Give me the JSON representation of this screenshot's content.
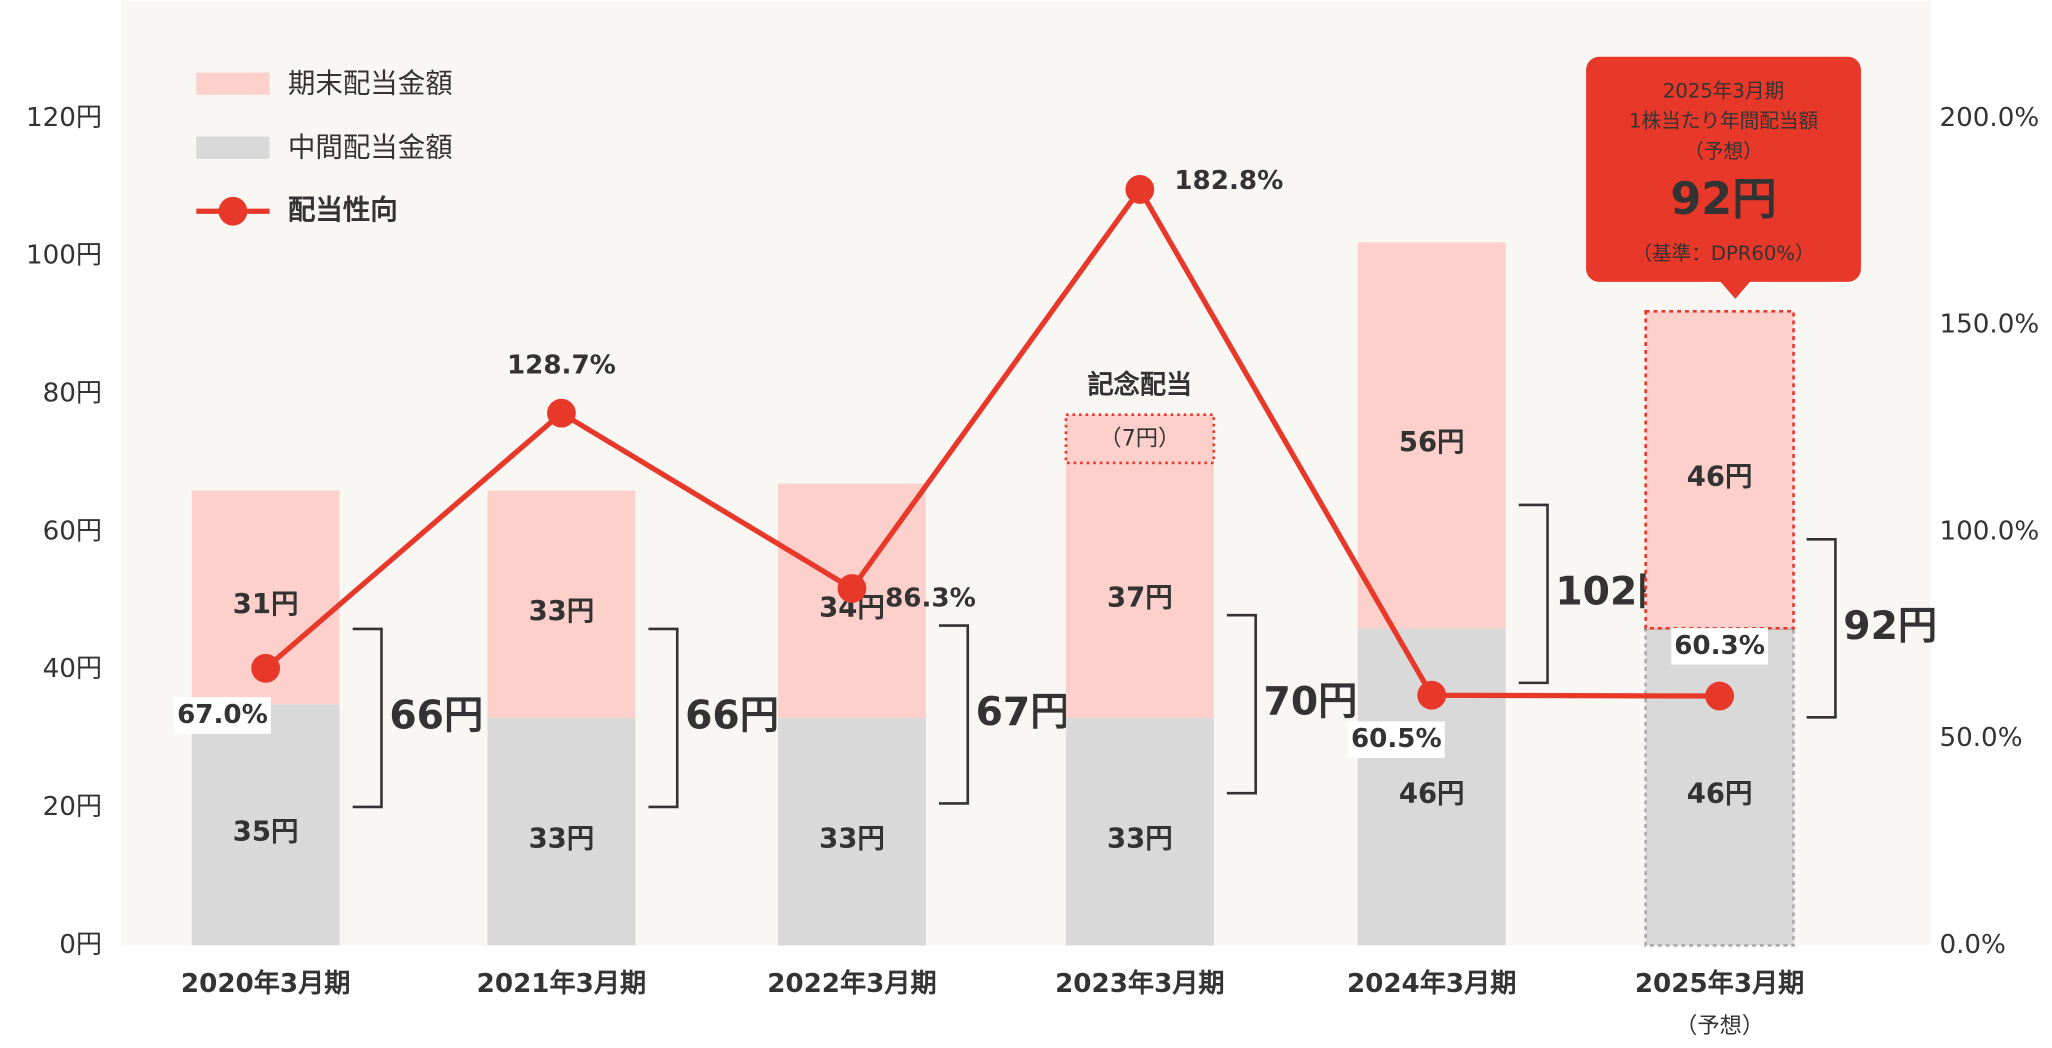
{
  "chart_data": {
    "type": "bar-line",
    "categories": [
      "2020年3月期",
      "2021年3月期",
      "2022年3月期",
      "2023年3月期",
      "2024年3月期",
      "2025年3月期"
    ],
    "forecast_note": "（予想）",
    "series": [
      {
        "name": "中間配当金額",
        "color": "#d9d9d9",
        "values": [
          35,
          33,
          33,
          33,
          46,
          46
        ],
        "value_labels": [
          "35円",
          "33円",
          "33円",
          "33円",
          "46円",
          "46円"
        ]
      },
      {
        "name": "期末配当金額",
        "color": "#fdd0cc",
        "values": [
          31,
          33,
          34,
          37,
          56,
          46
        ],
        "value_labels": [
          "31円",
          "33円",
          "34円",
          "37円",
          "56円",
          "46円"
        ]
      },
      {
        "name": "記念配当",
        "color": "#fdd0cc",
        "values": [
          null,
          null,
          null,
          7,
          null,
          null
        ],
        "value_labels": [
          null,
          null,
          null,
          "（7円）",
          null,
          null
        ]
      },
      {
        "name": "配当性向",
        "color": "#e8382a",
        "axis": "y2",
        "values": [
          67.0,
          128.7,
          86.3,
          182.8,
          60.5,
          60.3
        ],
        "value_labels": [
          "67.0%",
          "128.7%",
          "86.3%",
          "182.8%",
          "60.5%",
          "60.3%"
        ]
      }
    ],
    "totals": [
      66,
      66,
      67,
      70,
      102,
      92
    ],
    "total_labels": [
      "66円",
      "66円",
      "67円",
      "70円",
      "102円",
      "92円"
    ],
    "callout": [
      "2025年3月期",
      "1株当たり年間配当額",
      "（予想）",
      "92円",
      "（基準：DPR60%）"
    ],
    "ylim": [
      0,
      137
    ],
    "yticks": [
      {
        "value": 0,
        "label": "0円"
      },
      {
        "value": 20,
        "label": "20円"
      },
      {
        "value": 40,
        "label": "40円"
      },
      {
        "value": 60,
        "label": "60円"
      },
      {
        "value": 80,
        "label": "80円"
      },
      {
        "value": 100,
        "label": "100円"
      },
      {
        "value": 120,
        "label": "120円"
      }
    ],
    "y2lim": [
      0,
      228
    ],
    "y2ticks": [
      {
        "value": 0,
        "label": "0.0%"
      },
      {
        "value": 50,
        "label": "50.0%"
      },
      {
        "value": 100,
        "label": "100.0%"
      },
      {
        "value": 150,
        "label": "150.0%"
      },
      {
        "value": 200,
        "label": "200.0%"
      }
    ],
    "grid": false
  }
}
